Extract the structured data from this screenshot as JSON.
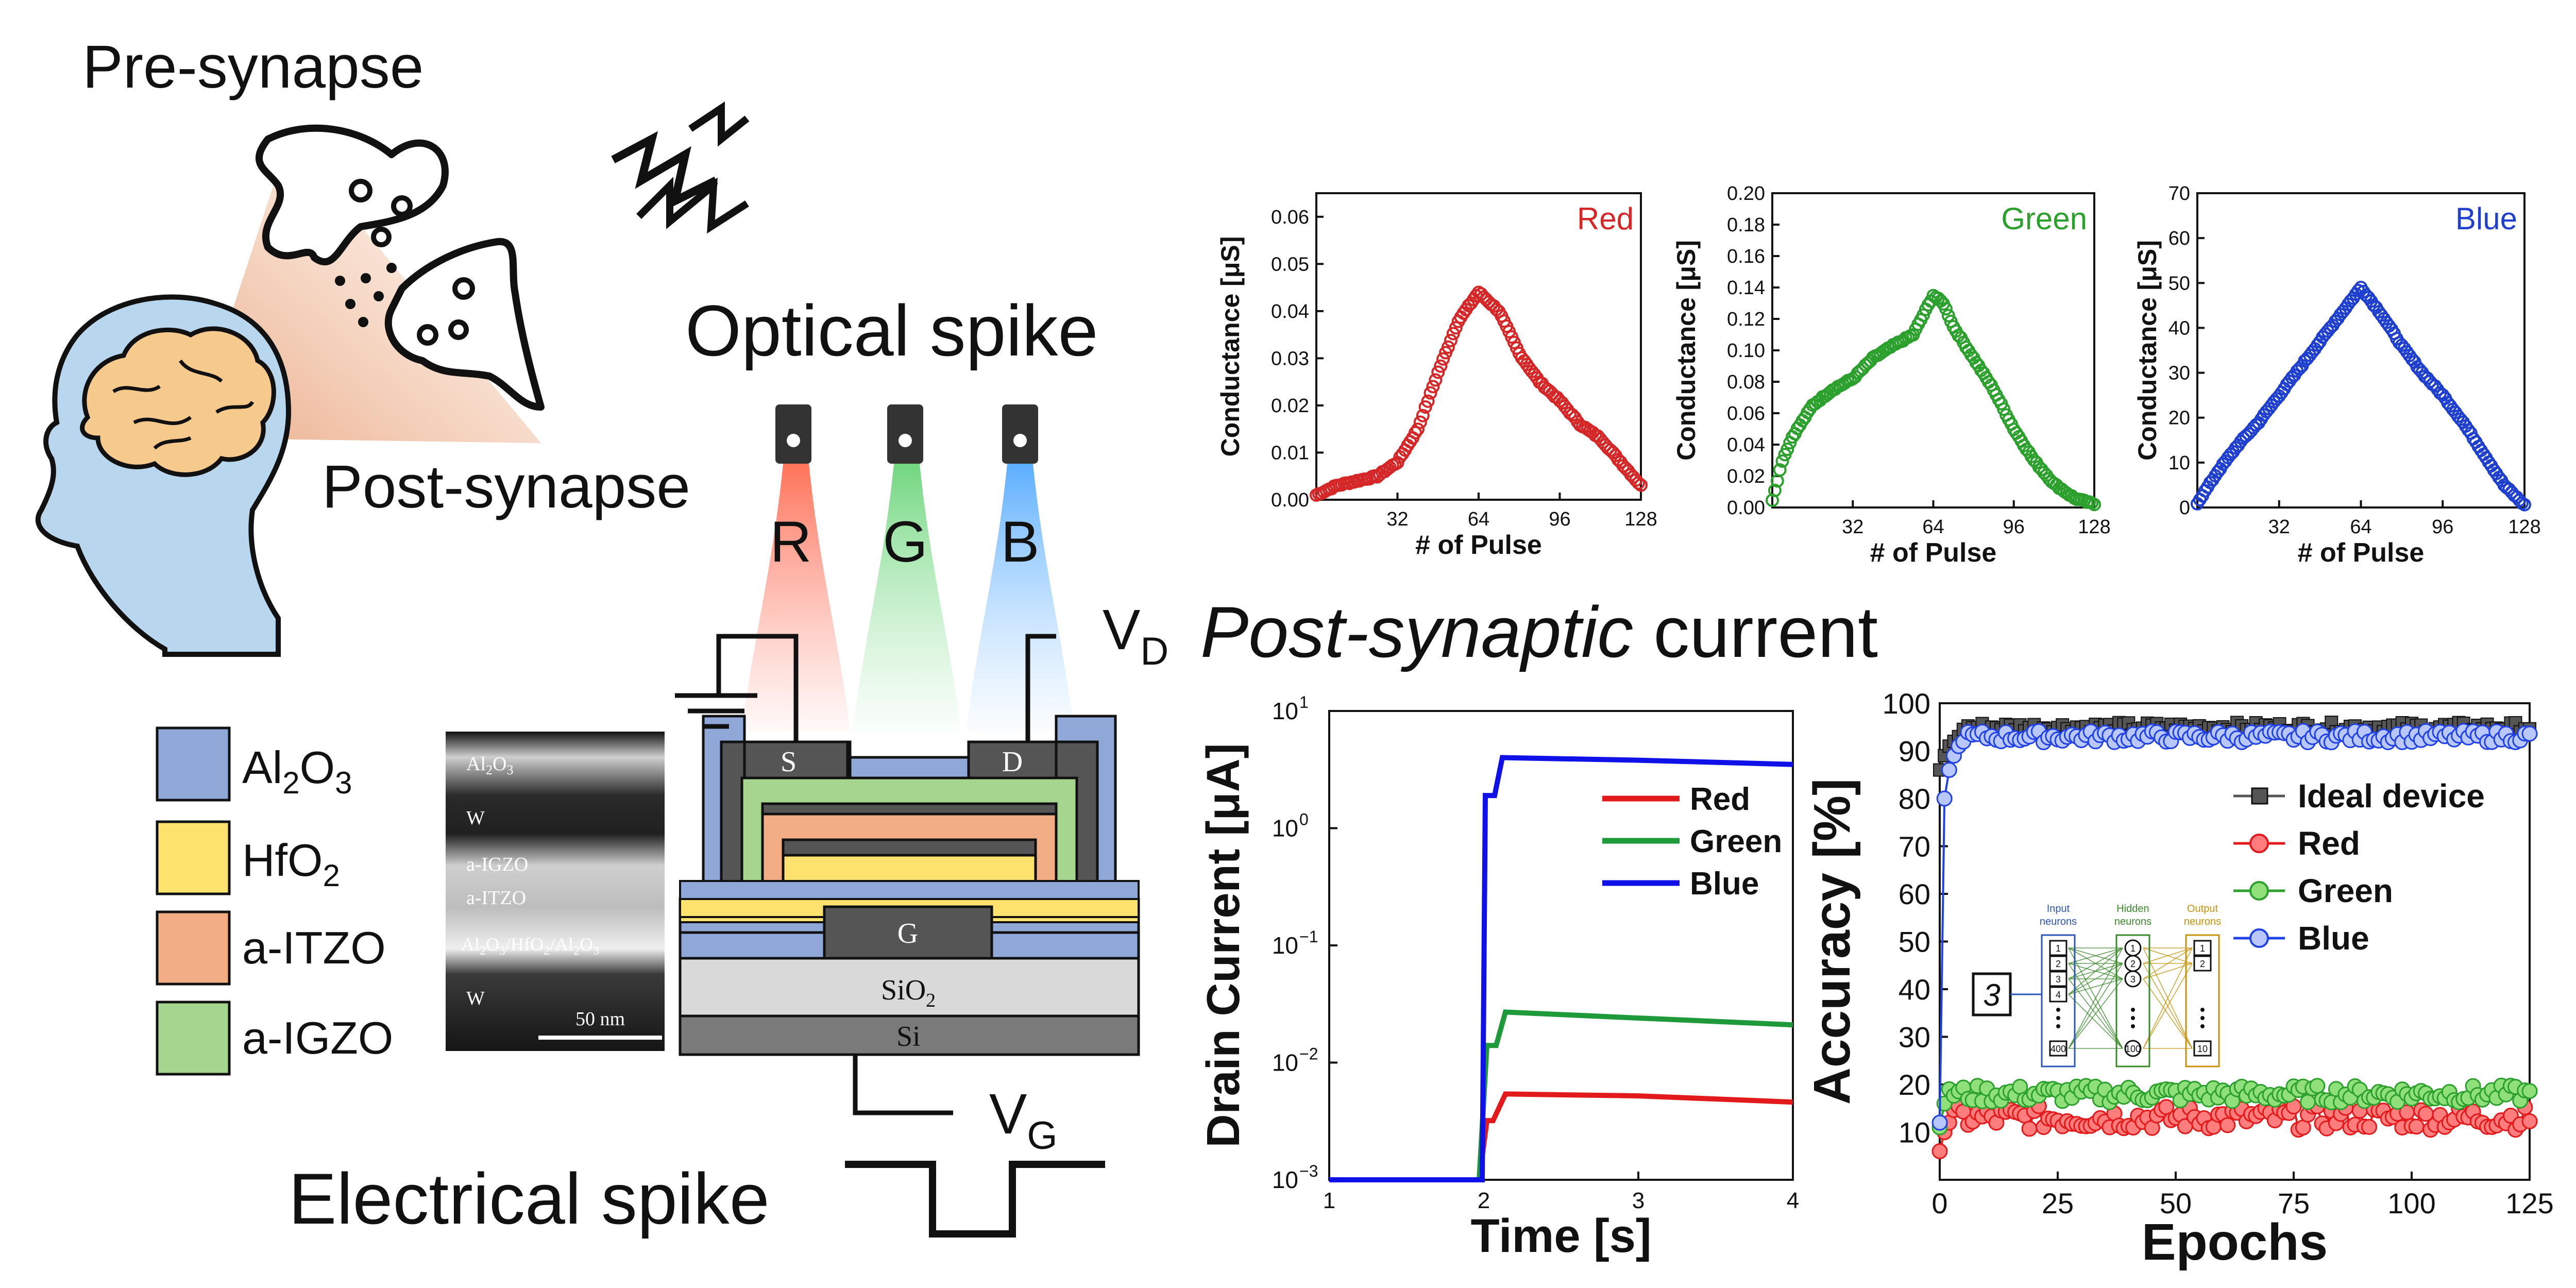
{
  "illustration": {
    "pre_synapse": "Pre-synapse",
    "post_synapse": "Post-synapse",
    "optical_spike": "Optical spike",
    "electrical_spike": "Electrical spike",
    "post_synaptic_current_italic": "Post-synaptic",
    "post_synaptic_current_rest": " current",
    "light_labels": [
      "R",
      "G",
      "B"
    ],
    "vd": "V",
    "vd_sub": "D",
    "vg": "V",
    "vg_sub": "G"
  },
  "legend_materials": [
    {
      "label": "Al",
      "sub1": "2",
      "mid": "O",
      "sub2": "3",
      "color": "#8fa8d8"
    },
    {
      "label": "HfO",
      "sub1": "2",
      "mid": "",
      "sub2": "",
      "color": "#fde36e"
    },
    {
      "label": "a-ITZO",
      "sub1": "",
      "mid": "",
      "sub2": "",
      "color": "#f3ad85"
    },
    {
      "label": "a-IGZO",
      "sub1": "",
      "mid": "",
      "sub2": "",
      "color": "#a6d590"
    }
  ],
  "tem": {
    "labels": [
      "Al2O3",
      "W",
      "a-IGZO",
      "a-ITZO",
      "Al2O3/HfO2/Al2O3",
      "W"
    ],
    "scale": "50 nm"
  },
  "device": {
    "source": "S",
    "drain": "D",
    "gate": "G",
    "sio2": "SiO",
    "sio2_sub": "2",
    "si": "Si"
  },
  "chart_data": [
    {
      "type": "scatter",
      "title": "Red",
      "color": "#d62728",
      "xlabel": "# of Pulse",
      "ylabel": "Conductance [μS]",
      "xlim": [
        0,
        128
      ],
      "xticks": [
        32,
        64,
        96,
        128
      ],
      "ylim": [
        0,
        0.065
      ],
      "yticks": [
        "0.00",
        "0.01",
        "0.02",
        "0.03",
        "0.04",
        "0.05",
        "0.06"
      ],
      "x": [
        0,
        8,
        16,
        24,
        32,
        40,
        48,
        56,
        64,
        72,
        80,
        88,
        96,
        104,
        112,
        120,
        128
      ],
      "y": [
        0.001,
        0.003,
        0.004,
        0.005,
        0.008,
        0.015,
        0.027,
        0.038,
        0.044,
        0.04,
        0.031,
        0.025,
        0.021,
        0.016,
        0.013,
        0.008,
        0.003
      ]
    },
    {
      "type": "scatter",
      "title": "Green",
      "color": "#2ca02c",
      "xlabel": "# of Pulse",
      "ylabel": "Conductance [μS]",
      "xlim": [
        0,
        128
      ],
      "xticks": [
        32,
        64,
        96,
        128
      ],
      "ylim": [
        0,
        0.2
      ],
      "yticks": [
        "0.00",
        "0.02",
        "0.04",
        "0.06",
        "0.08",
        "0.10",
        "0.12",
        "0.14",
        "0.16",
        "0.18",
        "0.20"
      ],
      "x": [
        0,
        4,
        8,
        16,
        24,
        32,
        40,
        48,
        56,
        64,
        68,
        72,
        80,
        88,
        96,
        104,
        112,
        120,
        128
      ],
      "y": [
        0.005,
        0.03,
        0.045,
        0.065,
        0.075,
        0.082,
        0.095,
        0.103,
        0.11,
        0.135,
        0.13,
        0.115,
        0.095,
        0.075,
        0.05,
        0.03,
        0.015,
        0.006,
        0.002
      ]
    },
    {
      "type": "scatter",
      "title": "Blue",
      "color": "#1f3fcf",
      "xlabel": "# of Pulse",
      "ylabel": "Conductance [μS]",
      "xlim": [
        0,
        128
      ],
      "xticks": [
        32,
        64,
        96,
        128
      ],
      "ylim": [
        0,
        70
      ],
      "yticks": [
        "0",
        "10",
        "20",
        "30",
        "40",
        "50",
        "60",
        "70"
      ],
      "x": [
        0,
        8,
        16,
        24,
        32,
        40,
        48,
        56,
        64,
        72,
        80,
        88,
        96,
        104,
        112,
        120,
        128
      ],
      "y": [
        1,
        8,
        14,
        19,
        25,
        31,
        37,
        43,
        49,
        43,
        36,
        30,
        25,
        19,
        12,
        5,
        0.5
      ]
    },
    {
      "type": "line",
      "xlabel": "Time [s]",
      "ylabel": "Drain Current [μA]",
      "xlim": [
        1,
        4
      ],
      "xticks": [
        "1",
        "2",
        "3",
        "4"
      ],
      "ylog": true,
      "ylim": [
        0.001,
        10
      ],
      "yticks": [
        {
          "base": "10",
          "exp": "1",
          "v": 10
        },
        {
          "base": "10",
          "exp": "0",
          "v": 1
        },
        {
          "base": "10",
          "exp": "−1",
          "v": 0.1
        },
        {
          "base": "10",
          "exp": "−2",
          "v": 0.01
        },
        {
          "base": "10",
          "exp": "−3",
          "v": 0.001
        }
      ],
      "legend": "top-right",
      "series": [
        {
          "name": "Red",
          "color": "#e31a1c",
          "x": [
            1,
            1.97,
            2.02,
            2.06,
            2.14,
            3,
            4
          ],
          "y": [
            0.001,
            0.001,
            0.0032,
            0.0032,
            0.0054,
            0.0052,
            0.0046
          ]
        },
        {
          "name": "Green",
          "color": "#1f9a3a",
          "x": [
            1,
            1.97,
            2.02,
            2.08,
            2.14,
            3,
            4
          ],
          "y": [
            0.001,
            0.001,
            0.014,
            0.014,
            0.027,
            0.024,
            0.021
          ]
        },
        {
          "name": "Blue",
          "color": "#1010e8",
          "x": [
            1,
            1.99,
            2.01,
            2.07,
            2.12,
            3,
            4
          ],
          "y": [
            0.001,
            0.001,
            1.9,
            1.9,
            4.0,
            3.8,
            3.5
          ]
        }
      ]
    },
    {
      "type": "line",
      "xlabel": "Epochs",
      "ylabel": "Accuracy [%]",
      "xlim": [
        0,
        125
      ],
      "xticks": [
        "0",
        "25",
        "50",
        "75",
        "100",
        "125"
      ],
      "ylim": [
        0,
        100
      ],
      "yticks": [
        "10",
        "20",
        "30",
        "40",
        "50",
        "60",
        "70",
        "80",
        "90",
        "100"
      ],
      "legend": "right",
      "series": [
        {
          "name": "Ideal device",
          "color": "#555555",
          "marker": "square",
          "base": 95,
          "start": [
            86,
            89,
            91,
            92,
            93
          ],
          "jitter": 1
        },
        {
          "name": "Red",
          "color": "#e31a1c",
          "marker": "circle",
          "base": 13,
          "start": [
            6,
            10,
            12
          ],
          "jitter": 2.5
        },
        {
          "name": "Green",
          "color": "#2ca02c",
          "marker": "circle",
          "base": 18,
          "start": [
            11,
            16,
            19
          ],
          "jitter": 1.8
        },
        {
          "name": "Blue",
          "color": "#2040e8",
          "marker": "circle",
          "base": 93,
          "start": [
            12,
            80,
            86,
            89,
            91
          ],
          "jitter": 1.2
        }
      ]
    }
  ],
  "nn_inset": {
    "digit": "3",
    "input_title": "Input neurons",
    "hidden_title": "Hidden neurons",
    "output_title": "Output neurons",
    "input_nodes": [
      "1",
      "2",
      "3",
      "4",
      "400"
    ],
    "hidden_nodes": [
      "1",
      "2",
      "3",
      "100"
    ],
    "output_nodes": [
      "1",
      "2",
      "10"
    ]
  }
}
